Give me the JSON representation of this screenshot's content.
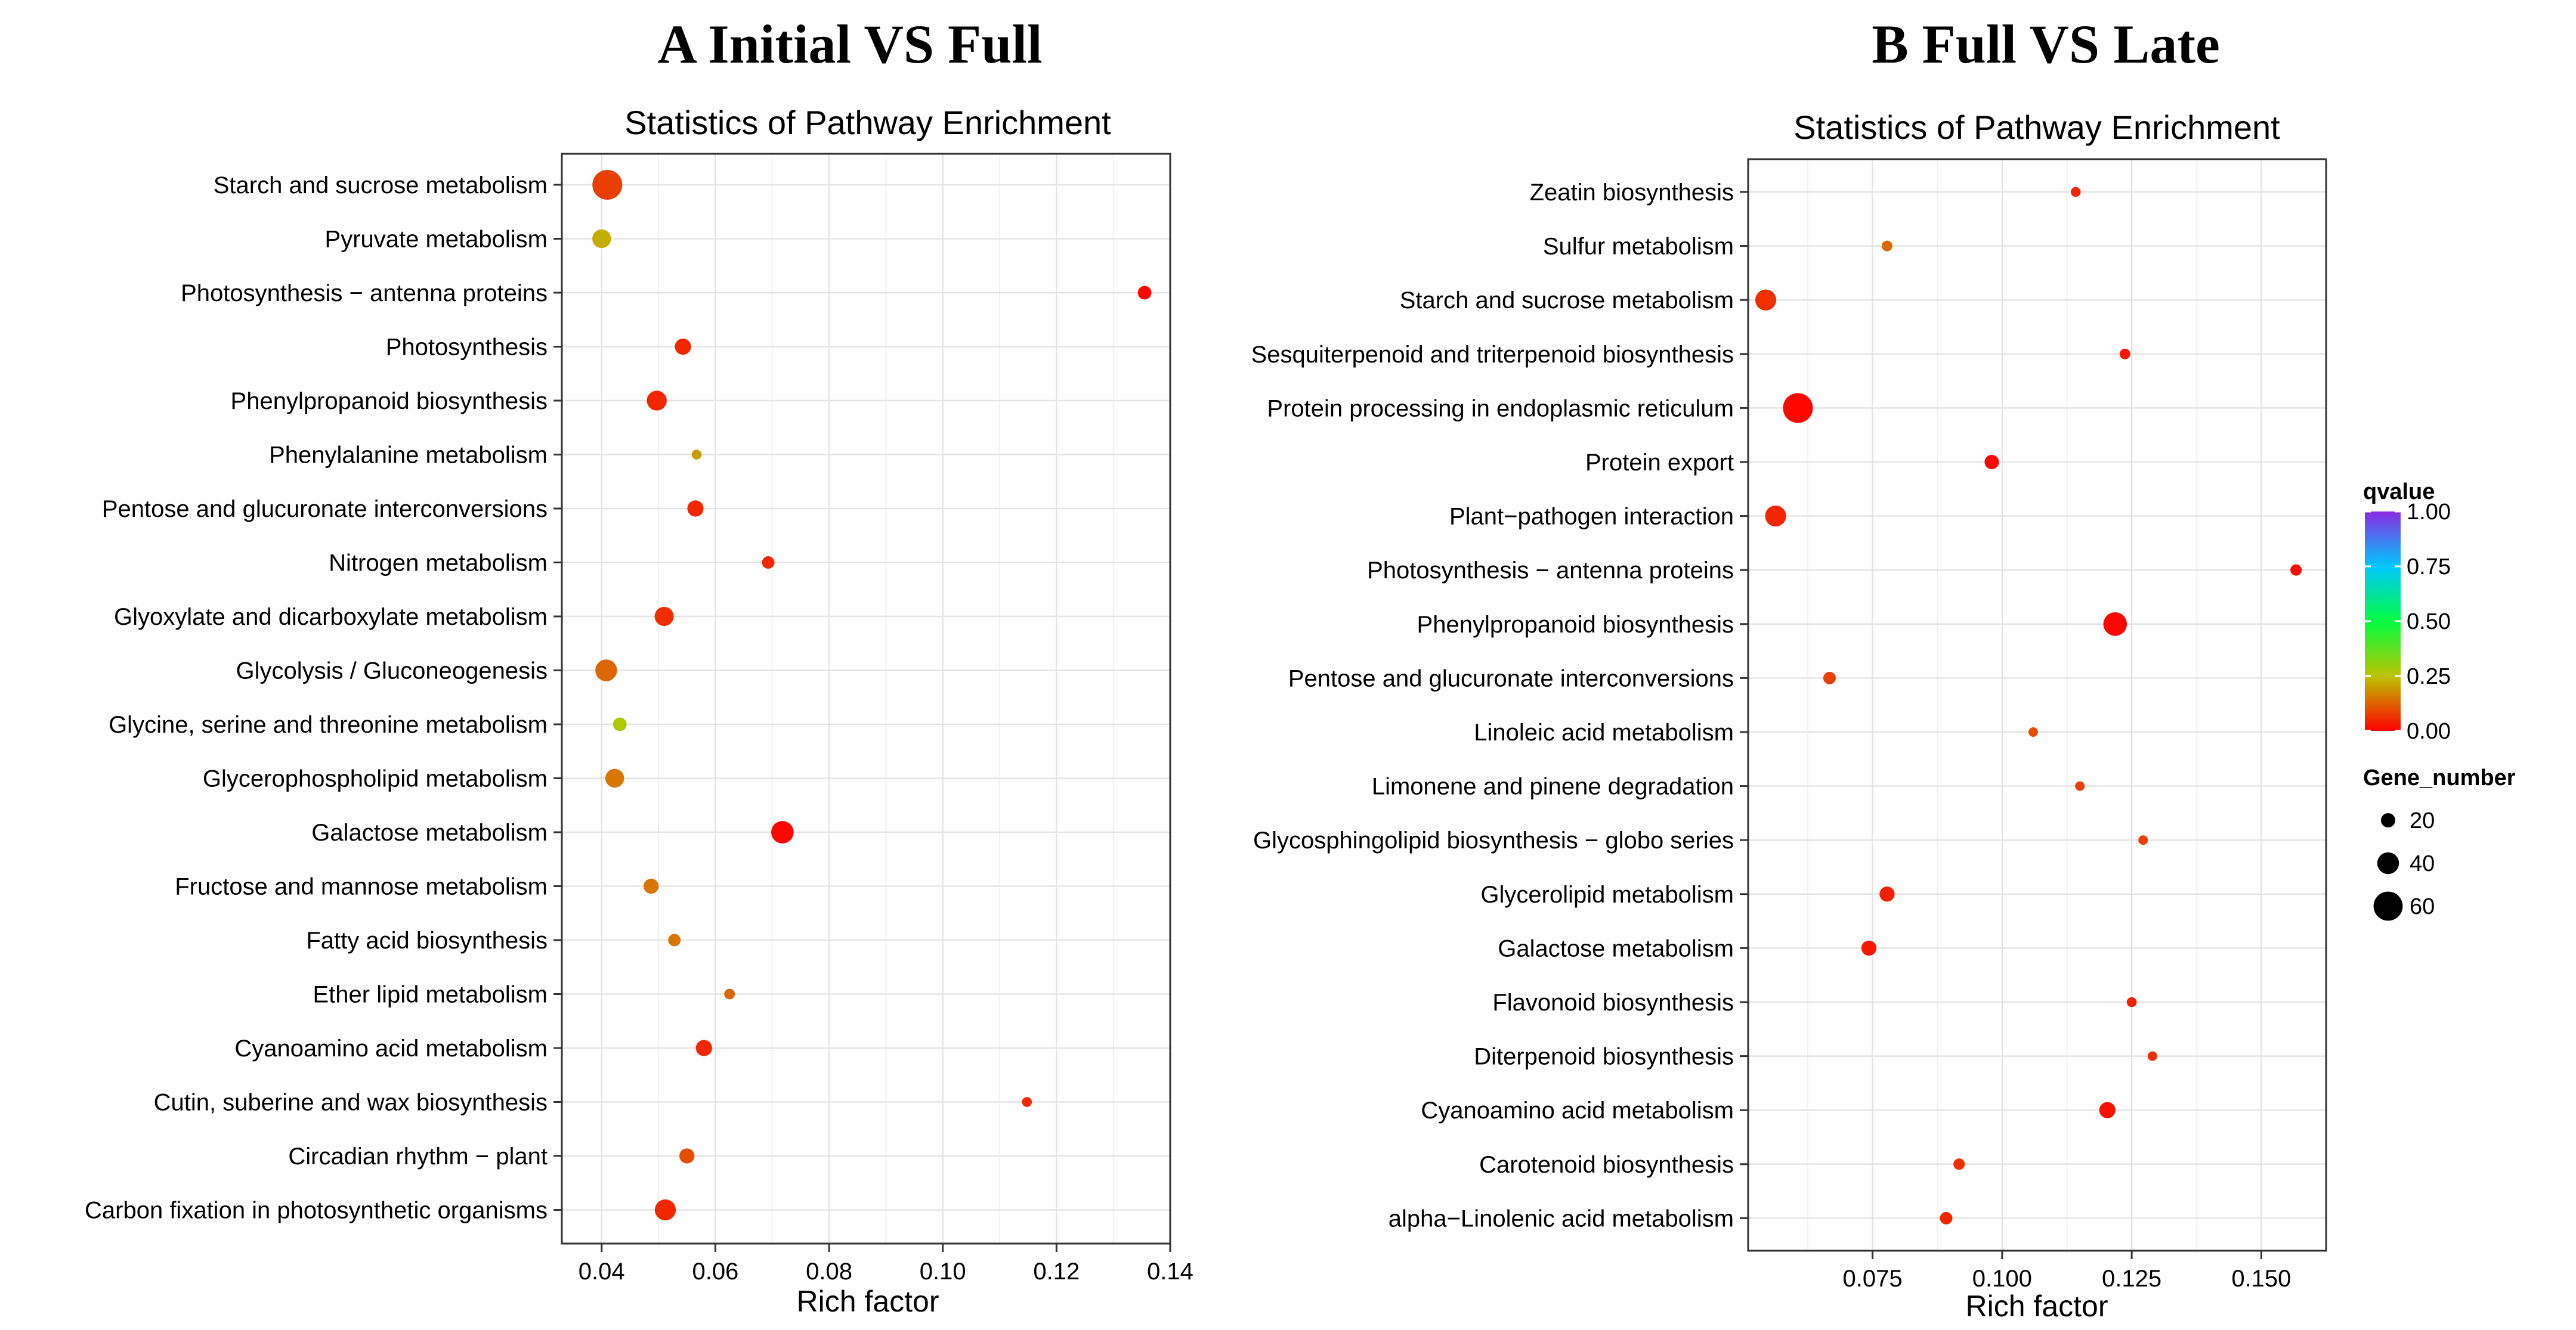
{
  "panels": {
    "a": {
      "title": "A  Initial VS Full"
    },
    "b": {
      "title": "B  Full VS Late"
    }
  },
  "legend": {
    "qvalue_title": "qvalue",
    "qvalue_ticks": [
      "1.00",
      "0.75",
      "0.50",
      "0.25",
      "0.00"
    ],
    "gene_title": "Gene_number",
    "gene_sizes": [
      "20",
      "40",
      "60"
    ]
  },
  "chart_data": [
    {
      "type": "scatter",
      "title": "Statistics of Pathway Enrichment",
      "xlabel": "Rich factor",
      "ylabel": "",
      "xlim": [
        0.033,
        0.14
      ],
      "xticks": [
        "0.04",
        "0.06",
        "0.08",
        "0.10",
        "0.12",
        "0.14"
      ],
      "grid": true,
      "categories": [
        "Starch and sucrose metabolism",
        "Pyruvate metabolism",
        "Photosynthesis − antenna proteins",
        "Photosynthesis",
        "Phenylpropanoid biosynthesis",
        "Phenylalanine metabolism",
        "Pentose and glucuronate interconversions",
        "Nitrogen metabolism",
        "Glyoxylate and dicarboxylate metabolism",
        "Glycolysis / Gluconeogenesis",
        "Glycine, serine and threonine metabolism",
        "Glycerophospholipid metabolism",
        "Galactose metabolism",
        "Fructose and mannose metabolism",
        "Fatty acid biosynthesis",
        "Ether lipid metabolism",
        "Cyanoamino acid metabolism",
        "Cutin, suberine and wax biosynthesis",
        "Circadian rhythm − plant",
        "Carbon fixation in photosynthetic organisms"
      ],
      "points": [
        {
          "x": 0.041,
          "size": 62,
          "q": 0.08
        },
        {
          "x": 0.04,
          "size": 32,
          "q": 0.22
        },
        {
          "x": 0.1355,
          "size": 18,
          "q": 0.01
        },
        {
          "x": 0.0543,
          "size": 25,
          "q": 0.05
        },
        {
          "x": 0.0497,
          "size": 35,
          "q": 0.05
        },
        {
          "x": 0.0567,
          "size": 8,
          "q": 0.2
        },
        {
          "x": 0.0565,
          "size": 25,
          "q": 0.05
        },
        {
          "x": 0.0693,
          "size": 15,
          "q": 0.05
        },
        {
          "x": 0.051,
          "size": 33,
          "q": 0.06
        },
        {
          "x": 0.0408,
          "size": 40,
          "q": 0.13
        },
        {
          "x": 0.0432,
          "size": 18,
          "q": 0.27
        },
        {
          "x": 0.0423,
          "size": 32,
          "q": 0.15
        },
        {
          "x": 0.0718,
          "size": 42,
          "q": 0.01
        },
        {
          "x": 0.0487,
          "size": 22,
          "q": 0.15
        },
        {
          "x": 0.0528,
          "size": 15,
          "q": 0.15
        },
        {
          "x": 0.0625,
          "size": 10,
          "q": 0.13
        },
        {
          "x": 0.058,
          "size": 25,
          "q": 0.05
        },
        {
          "x": 0.1148,
          "size": 8,
          "q": 0.05
        },
        {
          "x": 0.055,
          "size": 22,
          "q": 0.1
        },
        {
          "x": 0.0512,
          "size": 38,
          "q": 0.05
        }
      ]
    },
    {
      "type": "scatter",
      "title": "Statistics of Pathway Enrichment",
      "xlabel": "Rich factor",
      "ylabel": "",
      "xlim": [
        0.051,
        0.1625
      ],
      "xticks": [
        "0.075",
        "0.100",
        "0.125",
        "0.150"
      ],
      "grid": true,
      "categories": [
        "Zeatin biosynthesis",
        "Sulfur metabolism",
        "Starch and sucrose metabolism",
        "Sesquiterpenoid and triterpenoid biosynthesis",
        "Protein processing in endoplasmic reticulum",
        "Protein export",
        "Plant−pathogen interaction",
        "Photosynthesis − antenna proteins",
        "Phenylpropanoid biosynthesis",
        "Pentose and glucuronate interconversions",
        "Linoleic acid metabolism",
        "Limonene and pinene degradation",
        "Glycosphingolipid biosynthesis − globo series",
        "Glycerolipid metabolism",
        "Galactose metabolism",
        "Flavonoid biosynthesis",
        "Diterpenoid biosynthesis",
        "Cyanoamino acid metabolism",
        "Carotenoid biosynthesis",
        "alpha−Linolenic acid metabolism"
      ],
      "points": [
        {
          "x": 0.1142,
          "size": 8,
          "q": 0.05
        },
        {
          "x": 0.0778,
          "size": 10,
          "q": 0.13
        },
        {
          "x": 0.0544,
          "size": 38,
          "q": 0.06
        },
        {
          "x": 0.1237,
          "size": 10,
          "q": 0.03
        },
        {
          "x": 0.0606,
          "size": 62,
          "q": 0.01
        },
        {
          "x": 0.098,
          "size": 20,
          "q": 0.01
        },
        {
          "x": 0.0563,
          "size": 38,
          "q": 0.05
        },
        {
          "x": 0.1567,
          "size": 12,
          "q": 0.02
        },
        {
          "x": 0.1218,
          "size": 45,
          "q": 0.01
        },
        {
          "x": 0.0667,
          "size": 15,
          "q": 0.08
        },
        {
          "x": 0.106,
          "size": 7,
          "q": 0.1
        },
        {
          "x": 0.115,
          "size": 7,
          "q": 0.08
        },
        {
          "x": 0.1272,
          "size": 7,
          "q": 0.08
        },
        {
          "x": 0.0778,
          "size": 22,
          "q": 0.04
        },
        {
          "x": 0.0743,
          "size": 22,
          "q": 0.03
        },
        {
          "x": 0.125,
          "size": 8,
          "q": 0.04
        },
        {
          "x": 0.129,
          "size": 7,
          "q": 0.06
        },
        {
          "x": 0.1203,
          "size": 25,
          "q": 0.02
        },
        {
          "x": 0.0917,
          "size": 12,
          "q": 0.06
        },
        {
          "x": 0.0892,
          "size": 15,
          "q": 0.05
        }
      ]
    }
  ]
}
